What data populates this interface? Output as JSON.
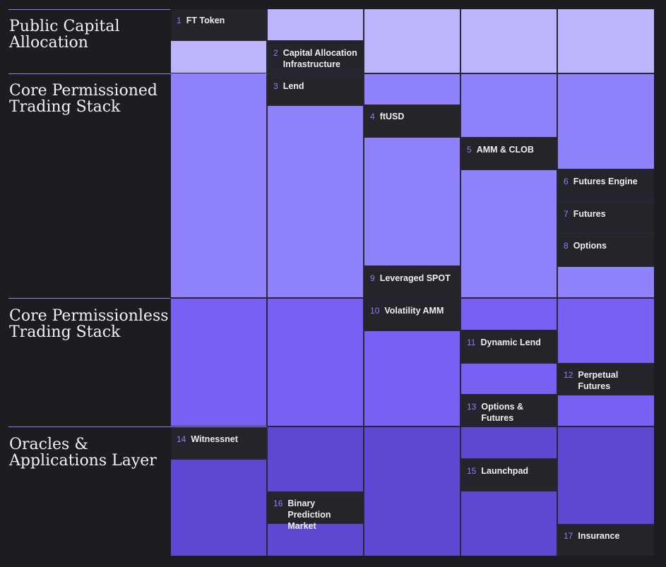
{
  "colors": {
    "background": "#1d1d21",
    "rule": "#8f82f7",
    "item_background": "#25242b",
    "number": "#8f7ff6",
    "public_capital": "#bcb5fb",
    "permissioned": "#8e83fa",
    "permissionless": "#7960f5",
    "oracles": "#5f48d1"
  },
  "layers": [
    {
      "id": "public-capital",
      "title": "Public Capital\nAllocation",
      "color_key": "public_capital"
    },
    {
      "id": "permissioned",
      "title": "Core Permissioned\nTrading Stack",
      "color_key": "permissioned"
    },
    {
      "id": "permissionless",
      "title": "Core Permissionless\nTrading Stack",
      "color_key": "permissionless"
    },
    {
      "id": "oracles",
      "title": "Oracles &\nApplications Layer",
      "color_key": "oracles"
    }
  ],
  "items": [
    {
      "num": "1",
      "label": "FT Token",
      "layer": "public-capital",
      "column": 1
    },
    {
      "num": "2",
      "label": "Capital Allocation Infrastructure",
      "layer": "public-capital",
      "column": 2
    },
    {
      "num": "3",
      "label": "Lend",
      "layer": "permissioned",
      "column": 2
    },
    {
      "num": "4",
      "label": "ftUSD",
      "layer": "permissioned",
      "column": 3
    },
    {
      "num": "5",
      "label": "AMM & CLOB",
      "layer": "permissioned",
      "column": 4
    },
    {
      "num": "6",
      "label": "Futures Engine",
      "layer": "permissioned",
      "column": 5
    },
    {
      "num": "7",
      "label": "Futures",
      "layer": "permissioned",
      "column": 5
    },
    {
      "num": "8",
      "label": "Options",
      "layer": "permissioned",
      "column": 5
    },
    {
      "num": "9",
      "label": "Leveraged SPOT",
      "layer": "permissioned",
      "column": 3
    },
    {
      "num": "10",
      "label": "Volatility AMM",
      "layer": "permissionless",
      "column": 3
    },
    {
      "num": "11",
      "label": "Dynamic Lend",
      "layer": "permissionless",
      "column": 4
    },
    {
      "num": "12",
      "label": "Perpetual Futures",
      "layer": "permissionless",
      "column": 5
    },
    {
      "num": "13",
      "label": "Options & Futures",
      "layer": "permissionless",
      "column": 4
    },
    {
      "num": "14",
      "label": "Witnessnet",
      "layer": "oracles",
      "column": 1
    },
    {
      "num": "15",
      "label": "Launchpad",
      "layer": "oracles",
      "column": 4
    },
    {
      "num": "16",
      "label": "Binary Prediction Market",
      "layer": "oracles",
      "column": 2
    },
    {
      "num": "17",
      "label": "Insurance",
      "layer": "oracles",
      "column": 5
    }
  ]
}
